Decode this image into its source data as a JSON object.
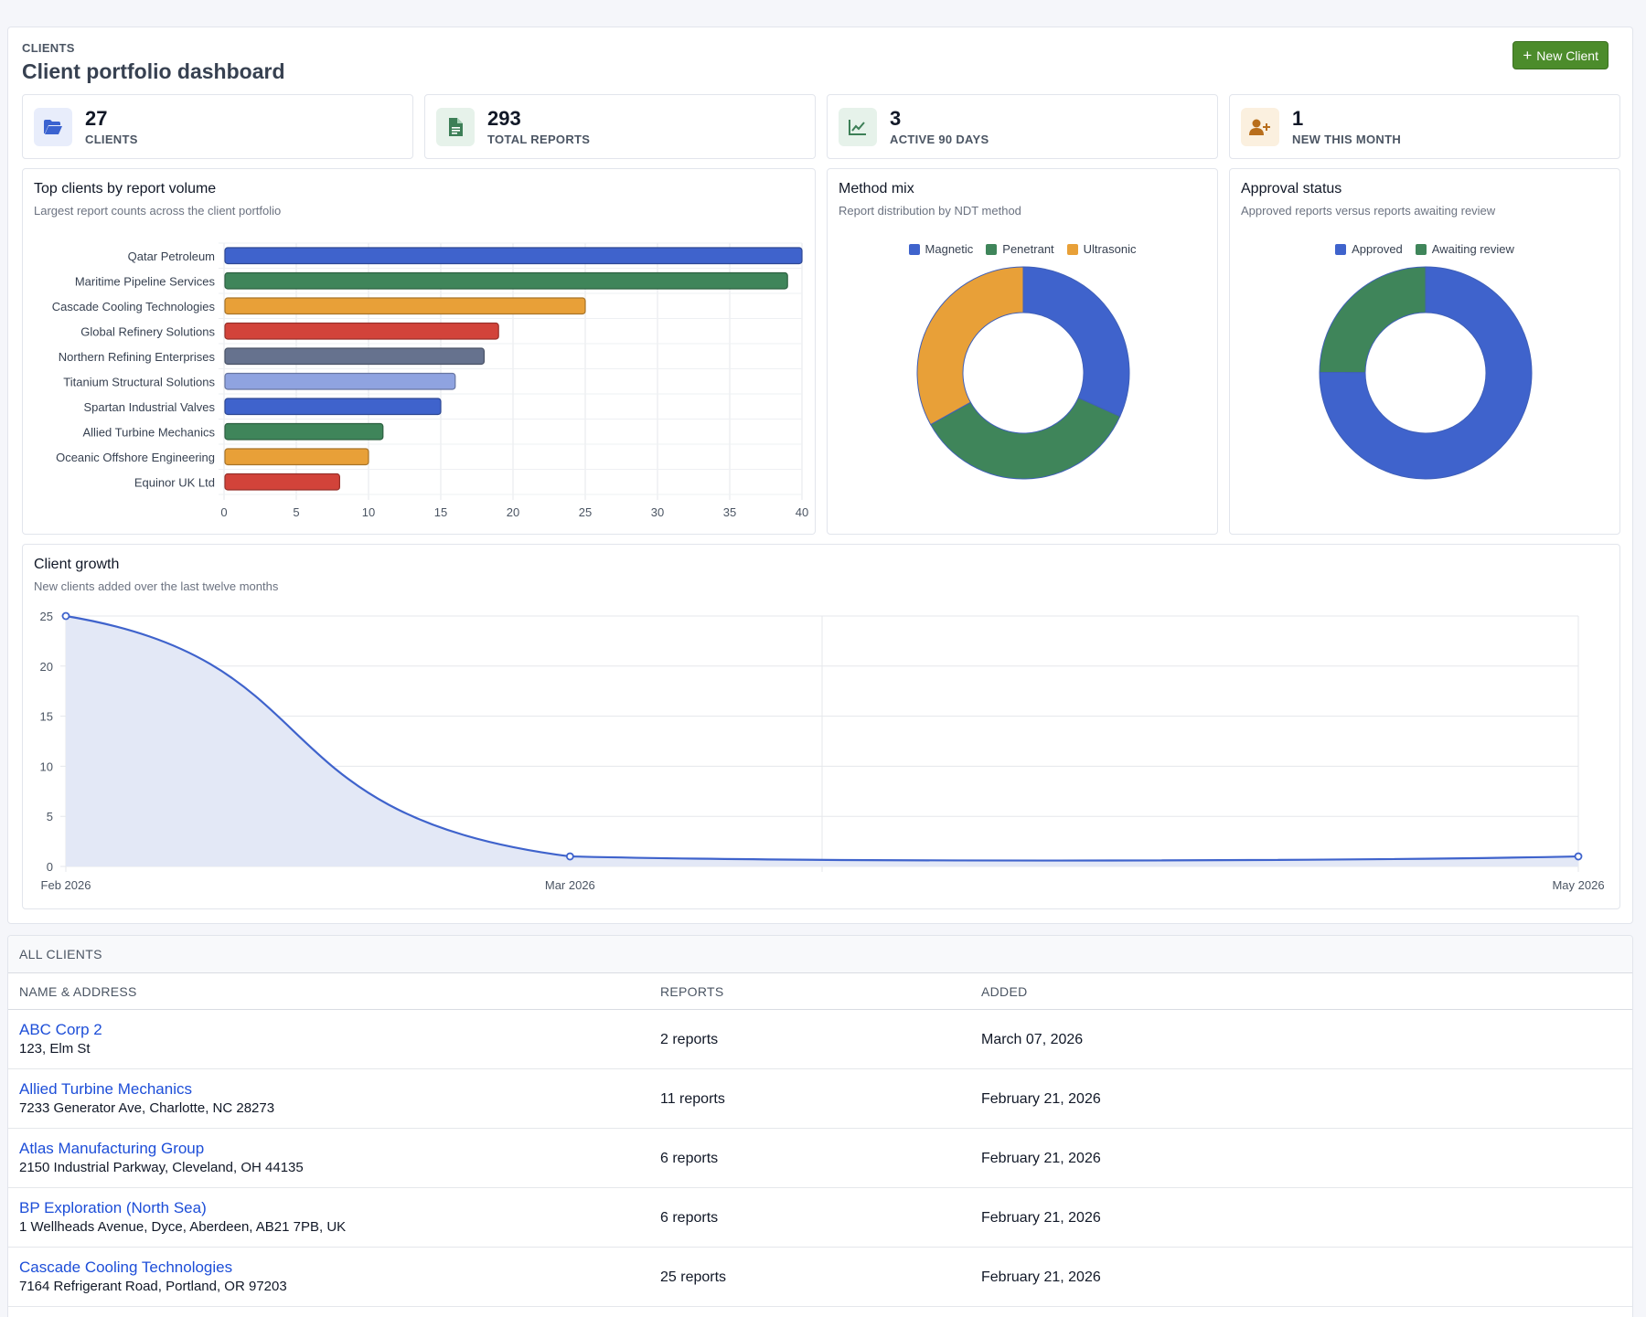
{
  "header": {
    "eyebrow": "CLIENTS",
    "title": "Client portfolio dashboard",
    "new_client_label": "New Client"
  },
  "stats": [
    {
      "value": "27",
      "label": "CLIENTS",
      "icon": "folder-open-icon",
      "color": "#3b63d0",
      "bg": "#e8edfb"
    },
    {
      "value": "293",
      "label": "TOTAL REPORTS",
      "icon": "file-text-icon",
      "color": "#3d7f57",
      "bg": "#e6f2ea"
    },
    {
      "value": "3",
      "label": "ACTIVE 90 DAYS",
      "icon": "line-chart-icon",
      "color": "#3d7f57",
      "bg": "#e6f2ea"
    },
    {
      "value": "1",
      "label": "NEW THIS MONTH",
      "icon": "user-plus-icon",
      "color": "#b86e1c",
      "bg": "#fbf0df"
    }
  ],
  "charts": {
    "top_clients": {
      "title": "Top clients by report volume",
      "subtitle": "Largest report counts across the client portfolio"
    },
    "method_mix": {
      "title": "Method mix",
      "subtitle": "Report distribution by NDT method"
    },
    "approval": {
      "title": "Approval status",
      "subtitle": "Approved reports versus reports awaiting review"
    },
    "growth": {
      "title": "Client growth",
      "subtitle": "New clients added over the last twelve months"
    }
  },
  "colors": {
    "blue": "#3f63cc",
    "green": "#3f855a",
    "orange": "#e8a038",
    "red": "#d2433a",
    "slate": "#66728e",
    "lightblue": "#8fa3e0",
    "area": "#e3e8f6"
  },
  "chart_data": [
    {
      "type": "bar",
      "orientation": "horizontal",
      "categories": [
        "Qatar Petroleum",
        "Maritime Pipeline Services",
        "Cascade Cooling Technologies",
        "Global Refinery Solutions",
        "Northern Refining Enterprises",
        "Titanium Structural Solutions",
        "Spartan Industrial Valves",
        "Allied Turbine Mechanics",
        "Oceanic Offshore Engineering",
        "Equinor UK Ltd"
      ],
      "values": [
        40,
        39,
        25,
        19,
        18,
        16,
        15,
        11,
        10,
        8
      ],
      "bar_colors": [
        "#3f63cc",
        "#3f855a",
        "#e8a038",
        "#d2433a",
        "#66728e",
        "#8fa3e0",
        "#3f63cc",
        "#3f855a",
        "#e8a038",
        "#d2433a"
      ],
      "xlim": [
        0,
        40
      ],
      "xticks": [
        0,
        5,
        10,
        15,
        20,
        25,
        30,
        35,
        40
      ],
      "grid": true
    },
    {
      "type": "pie",
      "donut": true,
      "labels": [
        "Magnetic",
        "Penetrant",
        "Ultrasonic"
      ],
      "values": [
        93,
        103,
        97
      ],
      "colors": [
        "#3f63cc",
        "#3f855a",
        "#e8a038"
      ],
      "legend": "top"
    },
    {
      "type": "pie",
      "donut": true,
      "labels": [
        "Approved",
        "Awaiting review"
      ],
      "values": [
        220,
        73
      ],
      "colors": [
        "#3f63cc",
        "#3f855a"
      ],
      "legend": "top"
    },
    {
      "type": "area",
      "x": [
        "Feb 2026",
        "Mar 2026",
        "May 2026"
      ],
      "x_months": [
        0,
        1,
        3
      ],
      "values": [
        25,
        1,
        1
      ],
      "ylim": [
        0,
        25
      ],
      "yticks": [
        0,
        5,
        10,
        15,
        20,
        25
      ],
      "grid": true
    }
  ],
  "table": {
    "title": "ALL CLIENTS",
    "columns": [
      "NAME & ADDRESS",
      "REPORTS",
      "ADDED"
    ],
    "rows": [
      {
        "name": "ABC Corp 2",
        "address": "123, Elm St",
        "reports": "2 reports",
        "added": "March 07, 2026"
      },
      {
        "name": "Allied Turbine Mechanics",
        "address": "7233 Generator Ave, Charlotte, NC 28273",
        "reports": "11 reports",
        "added": "February 21, 2026"
      },
      {
        "name": "Atlas Manufacturing Group",
        "address": "2150 Industrial Parkway, Cleveland, OH 44135",
        "reports": "6 reports",
        "added": "February 21, 2026"
      },
      {
        "name": "BP Exploration (North Sea)",
        "address": "1 Wellheads Avenue, Dyce, Aberdeen, AB21 7PB, UK",
        "reports": "6 reports",
        "added": "February 21, 2026"
      },
      {
        "name": "Cascade Cooling Technologies",
        "address": "7164 Refrigerant Road, Portland, OR 97203",
        "reports": "25 reports",
        "added": "February 21, 2026"
      }
    ]
  }
}
